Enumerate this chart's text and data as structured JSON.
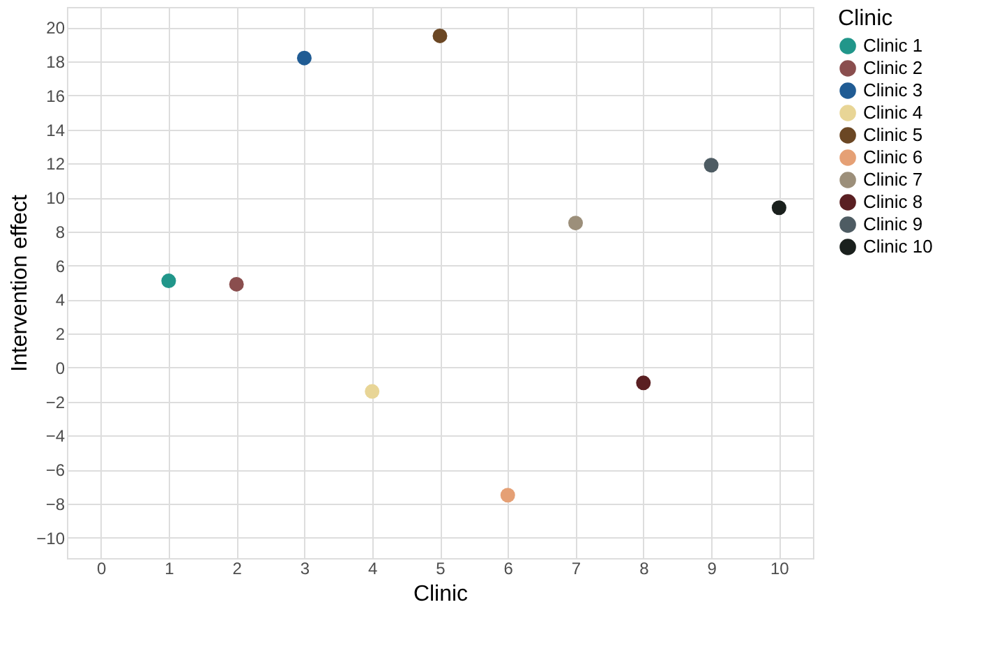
{
  "chart_data": {
    "type": "scatter",
    "xlabel": "Clinic",
    "ylabel": "Intervention effect",
    "legend_title": "Clinic",
    "xlim": [
      -0.5,
      10.5
    ],
    "xticks": [
      0,
      1,
      2,
      3,
      4,
      5,
      6,
      7,
      8,
      9,
      10
    ],
    "ylim": [
      -11.2,
      21.2
    ],
    "yticks": [
      -10,
      -8,
      -6,
      -4,
      -2,
      0,
      2,
      4,
      6,
      8,
      10,
      12,
      14,
      16,
      18,
      20
    ],
    "grid": true,
    "legend": "right",
    "marker": "circle",
    "series": [
      {
        "name": "Clinic 1",
        "color": "#21968a",
        "x": [
          1
        ],
        "values": [
          5.1
        ]
      },
      {
        "name": "Clinic 2",
        "color": "#8a4e4e",
        "x": [
          2
        ],
        "values": [
          4.9
        ]
      },
      {
        "name": "Clinic 3",
        "color": "#205c94",
        "x": [
          3
        ],
        "values": [
          18.2
        ]
      },
      {
        "name": "Clinic 4",
        "color": "#e8d596",
        "x": [
          4
        ],
        "values": [
          -1.4
        ]
      },
      {
        "name": "Clinic 5",
        "color": "#6b4724",
        "x": [
          5
        ],
        "values": [
          19.5
        ]
      },
      {
        "name": "Clinic 6",
        "color": "#e5a075",
        "x": [
          6
        ],
        "values": [
          -7.5
        ]
      },
      {
        "name": "Clinic 7",
        "color": "#9c8f7a",
        "x": [
          7
        ],
        "values": [
          8.5
        ]
      },
      {
        "name": "Clinic 8",
        "color": "#5a1f22",
        "x": [
          8
        ],
        "values": [
          -0.9
        ]
      },
      {
        "name": "Clinic 9",
        "color": "#4e5c63",
        "x": [
          9
        ],
        "values": [
          11.9
        ]
      },
      {
        "name": "Clinic 10",
        "color": "#1a201d",
        "x": [
          10
        ],
        "values": [
          9.4
        ]
      }
    ]
  }
}
